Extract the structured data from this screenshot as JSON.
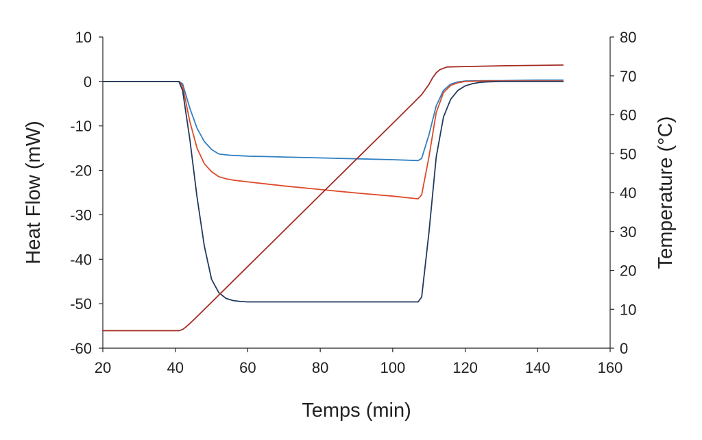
{
  "chart_data": {
    "type": "line",
    "title": "",
    "xlabel": "Temps (min)",
    "ylabel": "Heat Flow (mW)",
    "y2label": "Temperature (°C)",
    "xlim": [
      20,
      160
    ],
    "ylim": [
      -60,
      10
    ],
    "y2lim": [
      0,
      80
    ],
    "x_ticks": [
      "20",
      "40",
      "60",
      "80",
      "100",
      "120",
      "140",
      "160"
    ],
    "y_ticks": [
      "10",
      "0",
      "-10",
      "-20",
      "-30",
      "-40",
      "-50",
      "-60"
    ],
    "y2_ticks": [
      "80",
      "70",
      "60",
      "50",
      "40",
      "30",
      "20",
      "10",
      "0"
    ],
    "grid": false,
    "legend": "none",
    "series": [
      {
        "axis": "left",
        "color": "#2f7fc1",
        "x": [
          20,
          41,
          42,
          44,
          46,
          48,
          50,
          52,
          55,
          60,
          70,
          80,
          90,
          100,
          107,
          108,
          110,
          112,
          114,
          116,
          118,
          120,
          125,
          130,
          140,
          147
        ],
        "y": [
          0,
          0,
          -0.5,
          -6,
          -10.5,
          -13.5,
          -15.3,
          -16.3,
          -16.6,
          -16.8,
          -17.0,
          -17.2,
          -17.4,
          -17.6,
          -17.8,
          -17.3,
          -12,
          -5.5,
          -2,
          -0.6,
          -0.1,
          0.1,
          0.2,
          0.2,
          0.3,
          0.3
        ]
      },
      {
        "axis": "left",
        "color": "#dd4a2a",
        "x": [
          20,
          41,
          42,
          44,
          46,
          48,
          50,
          52,
          54,
          56,
          60,
          70,
          80,
          90,
          100,
          107,
          108,
          110,
          112,
          114,
          116,
          118,
          120,
          125,
          130,
          140,
          147
        ],
        "y": [
          0,
          0,
          -1,
          -9,
          -15,
          -18.5,
          -20.3,
          -21.4,
          -21.9,
          -22.2,
          -22.6,
          -23.5,
          -24.3,
          -25.1,
          -25.8,
          -26.4,
          -25.5,
          -17,
          -7,
          -2.5,
          -0.9,
          -0.3,
          0,
          0.1,
          0.1,
          0.1,
          0.1
        ]
      },
      {
        "axis": "left",
        "color": "#1f3a5c",
        "x": [
          20,
          41,
          42,
          44,
          46,
          48,
          50,
          52,
          54,
          56,
          58,
          60,
          70,
          80,
          90,
          100,
          107,
          108,
          110,
          112,
          114,
          116,
          118,
          120,
          122,
          124,
          126,
          130,
          140,
          147
        ],
        "y": [
          0,
          0,
          -2,
          -13,
          -26,
          -37,
          -44.5,
          -47.5,
          -48.8,
          -49.3,
          -49.5,
          -49.6,
          -49.6,
          -49.6,
          -49.6,
          -49.6,
          -49.6,
          -48.5,
          -34,
          -17,
          -8,
          -4,
          -2,
          -1,
          -0.5,
          -0.2,
          -0.1,
          0,
          0,
          0
        ]
      },
      {
        "axis": "right",
        "color": "#a32a22",
        "x": [
          20,
          41,
          42,
          43,
          45,
          50,
          60,
          70,
          80,
          90,
          100,
          105,
          108,
          110,
          111,
          112,
          113,
          115,
          120,
          130,
          140,
          147
        ],
        "y": [
          4.5,
          4.5,
          4.8,
          5.5,
          7.2,
          11.8,
          21,
          30.2,
          39.4,
          48.6,
          57.8,
          62.4,
          65.2,
          67.8,
          69.5,
          70.8,
          71.6,
          72.3,
          72.4,
          72.6,
          72.7,
          72.8
        ]
      }
    ]
  }
}
